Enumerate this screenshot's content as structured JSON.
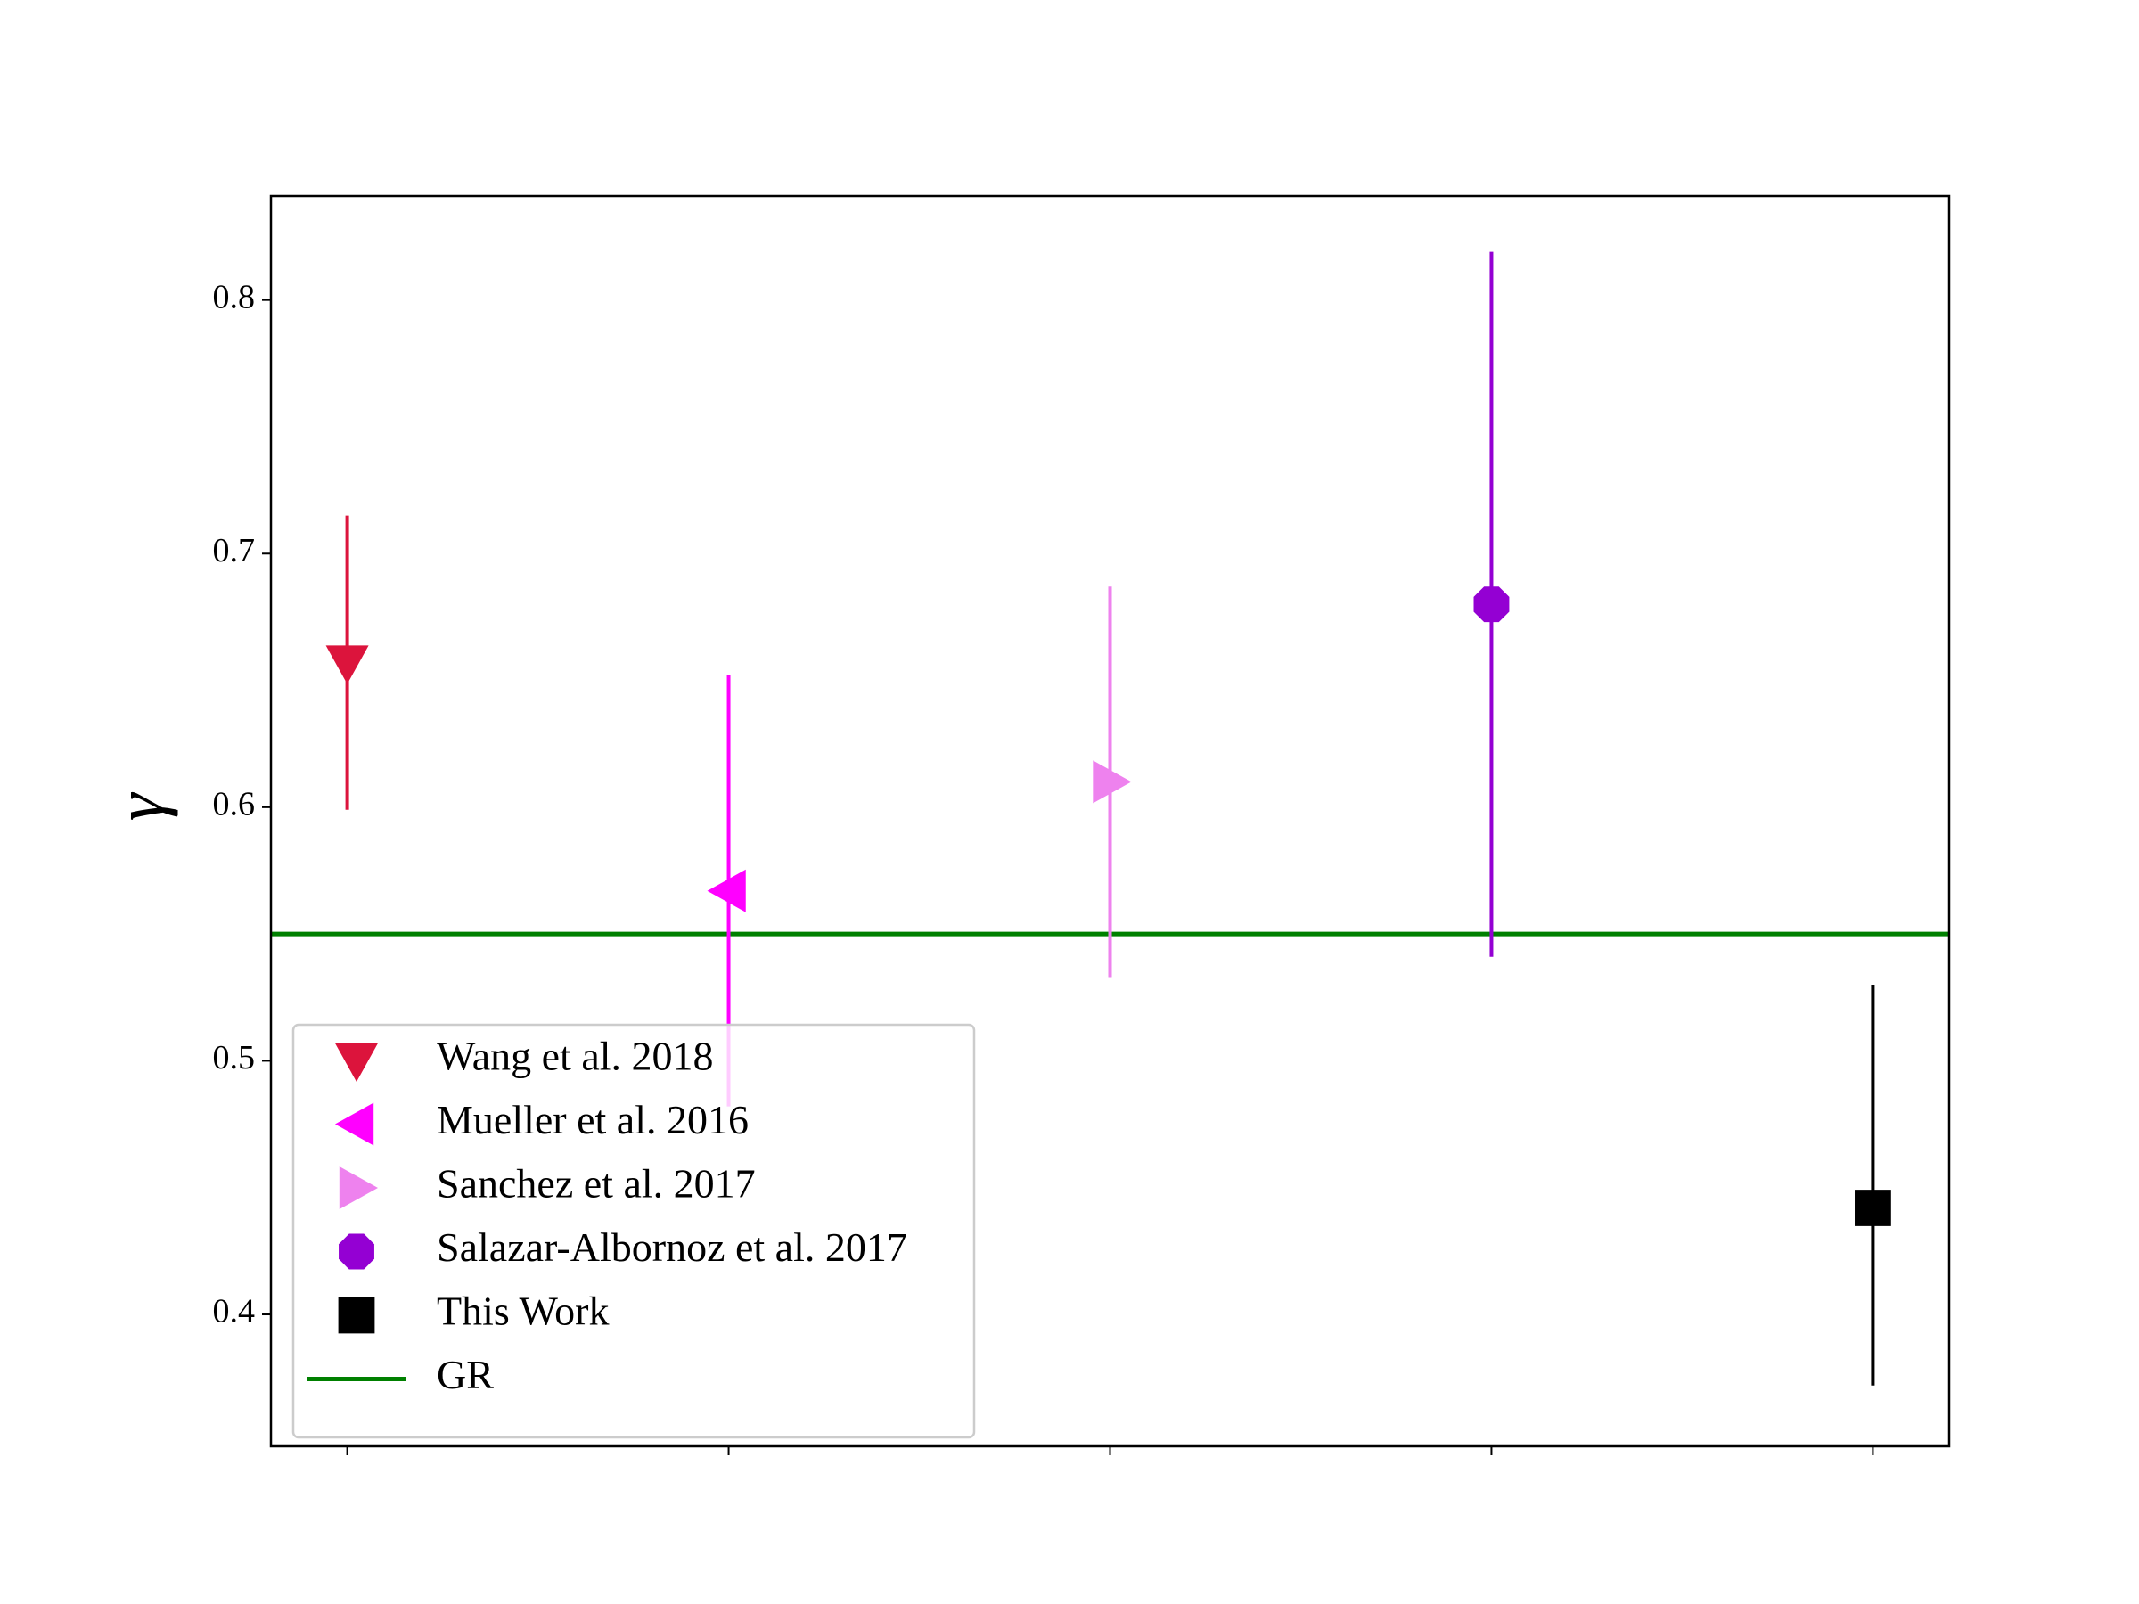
{
  "chart_data": {
    "type": "errorbar",
    "ylabel": "γ",
    "xlim": [
      -0.2,
      4.2
    ],
    "xticks": [
      0,
      1,
      2,
      3,
      4
    ],
    "ylim": [
      0.348,
      0.841
    ],
    "yticks": [
      0.4,
      0.5,
      0.6,
      0.7,
      0.8
    ],
    "legend": "lower left",
    "series": [
      {
        "name": "Wang et al. 2018",
        "color": "#dc143c",
        "marker": "triangle-down",
        "x": 0,
        "value": 0.657,
        "err_minus": 0.058,
        "err_plus": 0.058
      },
      {
        "name": "Mueller et al. 2016",
        "color": "#ff00ff",
        "marker": "triangle-left",
        "x": 1,
        "value": 0.567,
        "err_minus": 0.085,
        "err_plus": 0.085
      },
      {
        "name": "Sanchez et al. 2017",
        "color": "#ee82ee",
        "marker": "triangle-right",
        "x": 2,
        "value": 0.61,
        "err_minus": 0.077,
        "err_plus": 0.077
      },
      {
        "name": "Salazar-Albornoz et al. 2017",
        "color": "#9400d3",
        "marker": "octagon",
        "x": 3,
        "value": 0.68,
        "err_minus": 0.139,
        "err_plus": 0.139
      },
      {
        "name": "This Work",
        "color": "#000000",
        "marker": "square",
        "x": 4,
        "value": 0.442,
        "err_minus": 0.07,
        "err_plus": 0.088
      }
    ],
    "hlines": [
      {
        "name": "GR",
        "color": "#008000",
        "value": 0.55
      }
    ]
  }
}
